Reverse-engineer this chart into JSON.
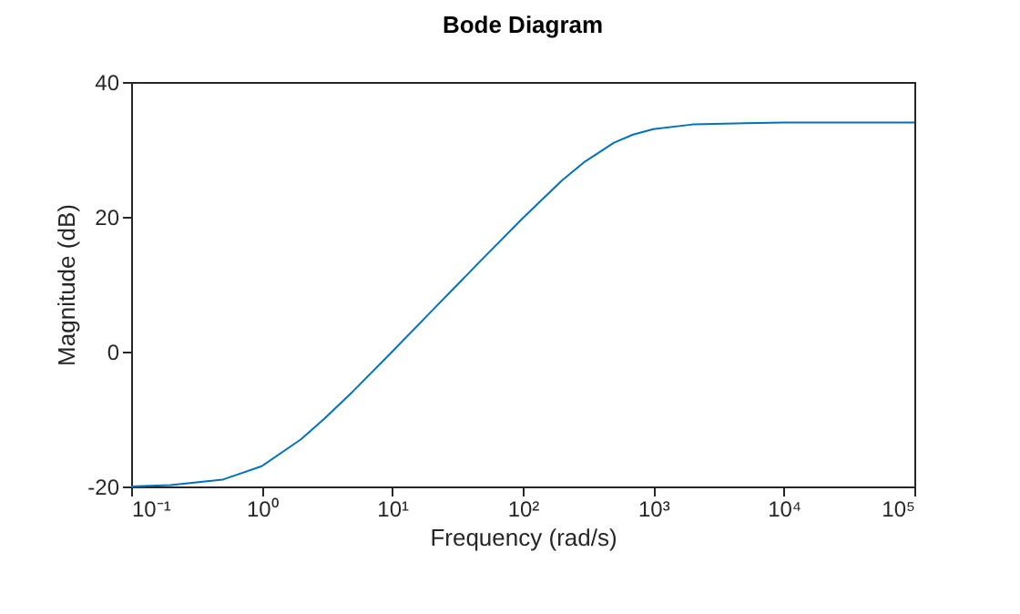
{
  "chart_data": {
    "type": "line",
    "title": "Bode Diagram",
    "xlabel": "Frequency (rad/s)",
    "ylabel": "Magnitude (dB)",
    "x": [
      0.1,
      0.2,
      0.5,
      1,
      2,
      3,
      5,
      10,
      20,
      50,
      100,
      200,
      300,
      500,
      700,
      1000,
      2000,
      5000,
      10000,
      100000
    ],
    "series": [
      {
        "color": "#0072bd",
        "values": [
          -20.0,
          -19.8,
          -19.0,
          -17.0,
          -13.0,
          -10.0,
          -5.9,
          0.0,
          6.0,
          13.9,
          19.8,
          25.4,
          28.2,
          31.0,
          32.2,
          33.0,
          33.7,
          33.9,
          34.0,
          34.0
        ]
      }
    ],
    "log": "x",
    "xlim": [
      0.1,
      100000
    ],
    "xticks": [
      {
        "value": 0.1,
        "label": "10⁻¹"
      },
      {
        "value": 1,
        "label": "10⁰"
      },
      {
        "value": 10,
        "label": "10¹"
      },
      {
        "value": 100,
        "label": "10²"
      },
      {
        "value": 1000,
        "label": "10³"
      },
      {
        "value": 10000,
        "label": "10⁴"
      },
      {
        "value": 100000,
        "label": "10⁵"
      }
    ],
    "ylim": [
      -20,
      40
    ],
    "yticks": [
      -20,
      0,
      20,
      40
    ],
    "grid": false,
    "marker": "none",
    "line_style": "solid"
  }
}
